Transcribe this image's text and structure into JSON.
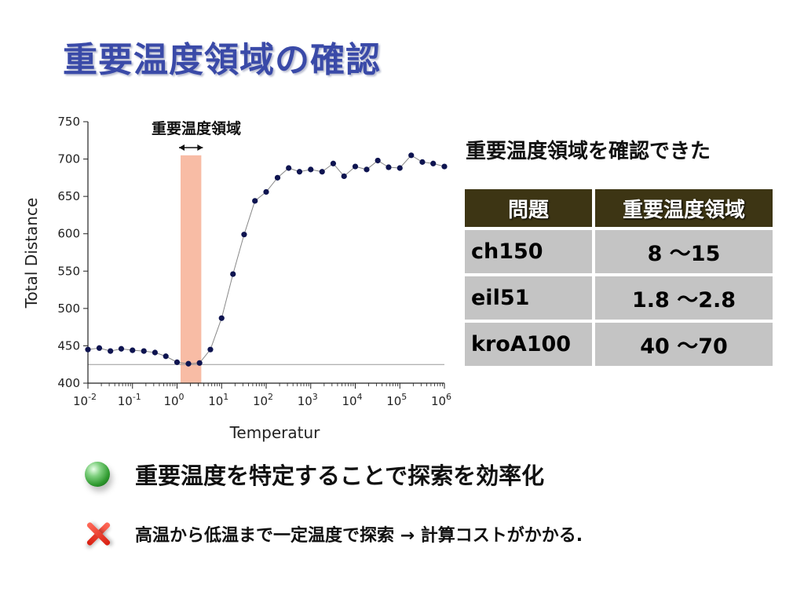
{
  "slide": {
    "title": "重要温度領域の確認",
    "summary": "重要温度領域を確認できた",
    "bullet1": "重要温度を特定することで探索を効率化",
    "bullet2": "高温から低温まで一定温度で探索 → 計算コストがかかる."
  },
  "table": {
    "headers": [
      "問題",
      "重要温度領域"
    ],
    "rows": [
      {
        "problem": "ch150",
        "range": "8 ～15"
      },
      {
        "problem": "eil51",
        "range": "1.8 ～2.8"
      },
      {
        "problem": "kroA100",
        "range": "40 ～70"
      }
    ]
  },
  "icons": {
    "bullet1": "green-sphere-icon",
    "bullet2": "red-cross-icon"
  },
  "chart_data": {
    "type": "scatter",
    "title": "",
    "xlabel": "Temperatur",
    "ylabel": "Total Distance",
    "xscale": "log",
    "xlim": [
      0.01,
      1000000
    ],
    "ylim": [
      400,
      750
    ],
    "xticks": [
      "10",
      "10",
      "10",
      "10",
      "10",
      "10",
      "10",
      "10",
      "10"
    ],
    "xtick_exponents": [
      "-2",
      "-1",
      "0",
      "1",
      "2",
      "3",
      "4",
      "5",
      "6"
    ],
    "yticks": [
      "400",
      "450",
      "500",
      "550",
      "600",
      "650",
      "700",
      "750"
    ],
    "highlight_label": "重要温度領域",
    "highlight_range": [
      1.2,
      3.5
    ],
    "reference_line_y": 425,
    "point_color": "#0e1450",
    "line_color": "#888888",
    "highlight_color": "#f8bca5",
    "series": [
      {
        "x": [
          0.01,
          0.018,
          0.032,
          0.056,
          0.1,
          0.18,
          0.32,
          0.56,
          1.0,
          1.8,
          3.2,
          5.6,
          10,
          18,
          32,
          56,
          100,
          180,
          320,
          560,
          1000,
          1800,
          3200,
          5600,
          10000,
          18000,
          32000,
          56000,
          100000,
          180000,
          320000,
          560000,
          1000000
        ],
        "y": [
          445,
          447,
          443,
          446,
          444,
          443,
          441,
          436,
          428,
          426,
          427,
          445,
          487,
          546,
          599,
          644,
          656,
          675,
          688,
          683,
          686,
          683,
          694,
          677,
          690,
          686,
          698,
          689,
          688,
          705,
          696,
          694,
          690
        ]
      }
    ]
  }
}
